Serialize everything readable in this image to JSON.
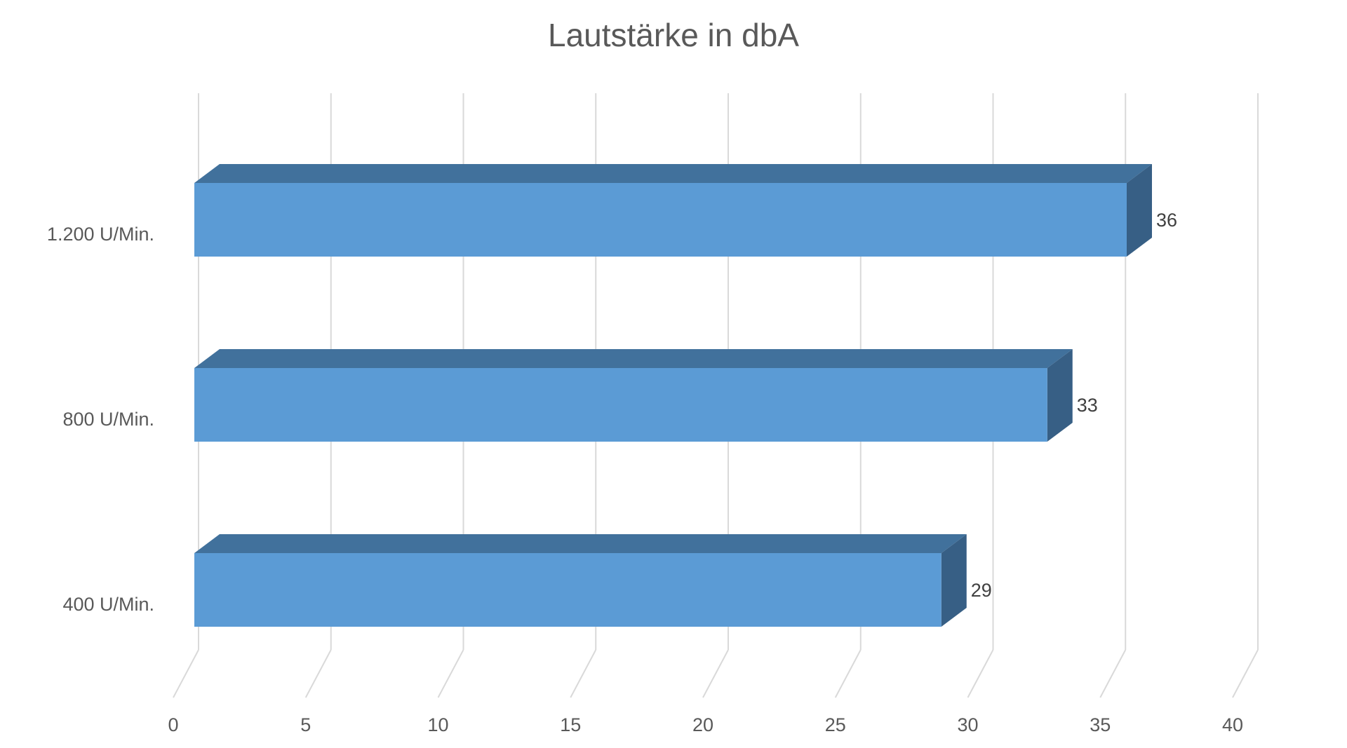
{
  "chart_data": {
    "type": "bar",
    "orientation": "horizontal",
    "style": "3d",
    "title": "Lautstärke in dbA",
    "categories": [
      "1.200 U/Min.",
      "800 U/Min.",
      "400 U/Min."
    ],
    "values": [
      36,
      33,
      29
    ],
    "data_labels": [
      "36",
      "33",
      "29"
    ],
    "xlim": [
      0,
      40
    ],
    "ticks": [
      0,
      5,
      10,
      15,
      20,
      25,
      30,
      35,
      40
    ],
    "tick_labels": [
      "0",
      "5",
      "10",
      "15",
      "20",
      "25",
      "30",
      "35",
      "40"
    ],
    "grid": true,
    "legend": "none",
    "colors": {
      "bar_front": "#5B9BD5",
      "bar_top": "#41719C",
      "bar_side": "#375F85",
      "grid": "#D9D9D9",
      "text": "#595959"
    }
  }
}
